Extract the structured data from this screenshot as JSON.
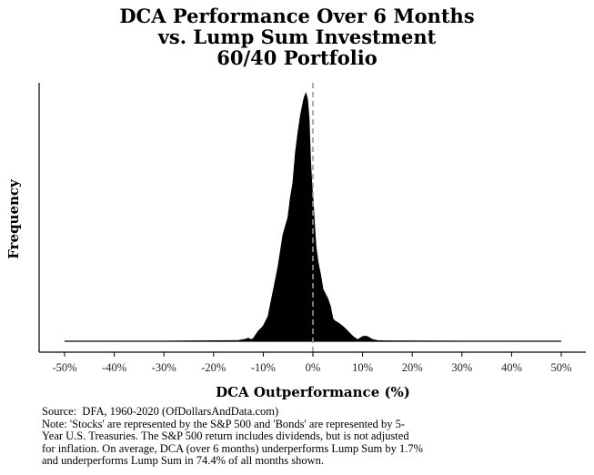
{
  "chart_data": {
    "type": "area",
    "title_lines": [
      "DCA Performance Over 6 Months",
      "vs. Lump Sum Investment",
      "60/40 Portfolio"
    ],
    "xlabel": "DCA Outperformance (%)",
    "ylabel": "Frequency",
    "xlim": [
      -50,
      50
    ],
    "x_ticks": [
      -50,
      -40,
      -30,
      -20,
      -10,
      0,
      10,
      20,
      30,
      40,
      50
    ],
    "x_tick_labels": [
      "-50%",
      "-40%",
      "-30%",
      "-20%",
      "-10%",
      "0%",
      "10%",
      "20%",
      "30%",
      "40%",
      "50%"
    ],
    "reference_line": {
      "x": 0,
      "style": "dashed",
      "color": "#999999"
    },
    "fill_color": "#000000",
    "grid": false,
    "series": [
      {
        "density": {
          "x": [
            -50,
            -30,
            -15,
            -13.5,
            -13,
            -12.5,
            -12,
            -11,
            -10,
            -9,
            -8,
            -7,
            -6,
            -5,
            -4.5,
            -4,
            -3.5,
            -3,
            -2.5,
            -2,
            -1.7,
            -1.4,
            -1.1,
            -0.8,
            -0.5,
            -0.2,
            0,
            0.3,
            0.6,
            1,
            1.5,
            2,
            3,
            3.5,
            4,
            4.5,
            5,
            6,
            7,
            8,
            9,
            9.5,
            10,
            10.5,
            11,
            11.5,
            12,
            13,
            15,
            30,
            50
          ],
          "y": [
            0,
            0,
            0.002,
            0.008,
            0.012,
            0.006,
            0.01,
            0.04,
            0.06,
            0.1,
            0.2,
            0.3,
            0.43,
            0.5,
            0.58,
            0.64,
            0.76,
            0.84,
            0.91,
            0.96,
            0.987,
            1.0,
            0.975,
            0.9,
            0.73,
            0.62,
            0.57,
            0.47,
            0.38,
            0.32,
            0.27,
            0.21,
            0.17,
            0.14,
            0.09,
            0.08,
            0.075,
            0.06,
            0.04,
            0.02,
            0.005,
            0.012,
            0.018,
            0.02,
            0.018,
            0.012,
            0.006,
            0.002,
            0.001,
            0,
            0
          ]
        }
      }
    ]
  },
  "footer": {
    "source": "Source:  DFA, 1960-2020 (OfDollarsAndData.com)",
    "note_lines": [
      "Note: 'Stocks' are represented by the S&P 500 and 'Bonds' are represented by 5-",
      "Year U.S. Treasuries. The S&P 500 return includes dividends, but is not adjusted",
      "for inflation. On average, DCA (over 6 months) underperforms Lump Sum by 1.7%",
      "and underperforms Lump Sum in 74.4% of all months shown."
    ]
  }
}
